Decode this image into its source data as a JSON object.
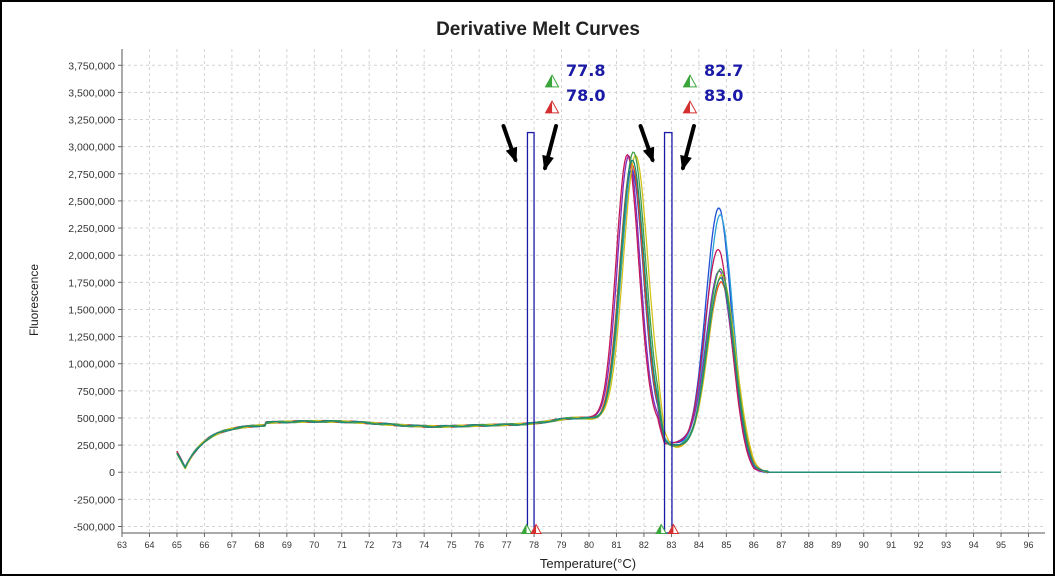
{
  "chart_data": {
    "type": "line",
    "title": "Derivative Melt Curves",
    "xlabel": "Temperature(°C)",
    "ylabel": "Fluorescence",
    "xlim": [
      63,
      96.6
    ],
    "ylim": [
      -560000,
      3900000
    ],
    "x_ticks": [
      63,
      64,
      65,
      66,
      67,
      68,
      69,
      70,
      71,
      72,
      73,
      74,
      75,
      76,
      77,
      78,
      79,
      80,
      81,
      82,
      83,
      84,
      85,
      86,
      87,
      88,
      89,
      90,
      91,
      92,
      93,
      94,
      95,
      96
    ],
    "x_tick_labels": [
      "63",
      "64",
      "65",
      "66",
      "67",
      "68",
      "69",
      "70",
      "71",
      "72",
      "73",
      "74",
      "75",
      "76",
      "77",
      "78",
      "79",
      "80",
      "81",
      "82",
      "83",
      "84",
      "85",
      "86",
      "87",
      "88",
      "89",
      "90",
      "91",
      "92",
      "93",
      "94",
      "95",
      "96"
    ],
    "y_ticks": [
      -500000,
      -250000,
      0,
      250000,
      500000,
      750000,
      1000000,
      1250000,
      1500000,
      1750000,
      2000000,
      2250000,
      2500000,
      2750000,
      3000000,
      3250000,
      3500000,
      3750000
    ],
    "y_tick_labels": [
      "-500,000",
      "-250,000",
      "0",
      "250,000",
      "500,000",
      "750,000",
      "1,000,000",
      "1,250,000",
      "1,500,000",
      "1,750,000",
      "2,000,000",
      "2,250,000",
      "2,500,000",
      "2,750,000",
      "3,000,000",
      "3,250,000",
      "3,500,000",
      "3,750,000"
    ],
    "grid": true,
    "series": [
      {
        "color": "#1f4fd6",
        "params": {
          "b0": 190000,
          "pA": 2350000,
          "mA": 81.55,
          "sA": 0.42,
          "pB": 2180000,
          "mB": 84.72,
          "sB": 0.46,
          "dip": 1.0
        }
      },
      {
        "color": "#2a9fd6",
        "params": {
          "b0": 175000,
          "pA": 2330000,
          "mA": 81.6,
          "sA": 0.43,
          "pB": 2120000,
          "mB": 84.78,
          "sB": 0.47,
          "dip": 0.95
        }
      },
      {
        "color": "#7b2fbe",
        "params": {
          "b0": 185000,
          "pA": 2460000,
          "mA": 81.45,
          "sA": 0.41,
          "pB": 1580000,
          "mB": 84.75,
          "sB": 0.48,
          "dip": 1.05
        }
      },
      {
        "color": "#c2185b",
        "params": {
          "b0": 200000,
          "pA": 2480000,
          "mA": 81.4,
          "sA": 0.41,
          "pB": 1800000,
          "mB": 84.7,
          "sB": 0.47,
          "dip": 1.0
        }
      },
      {
        "color": "#e64a19",
        "params": {
          "b0": 180000,
          "pA": 2400000,
          "mA": 81.55,
          "sA": 0.43,
          "pB": 1520000,
          "mB": 84.82,
          "sB": 0.5,
          "dip": 0.9
        }
      },
      {
        "color": "#d4c21a",
        "params": {
          "b0": 170000,
          "pA": 2470000,
          "mA": 81.7,
          "sA": 0.45,
          "pB": 1600000,
          "mB": 84.85,
          "sB": 0.5,
          "dip": 0.85
        }
      },
      {
        "color": "#43a047",
        "params": {
          "b0": 178000,
          "pA": 2510000,
          "mA": 81.62,
          "sA": 0.44,
          "pB": 1650000,
          "mB": 84.8,
          "sB": 0.49,
          "dip": 0.88
        }
      },
      {
        "color": "#1b8a7a",
        "params": {
          "b0": 182000,
          "pA": 2440000,
          "mA": 81.58,
          "sA": 0.43,
          "pB": 1560000,
          "mB": 84.8,
          "sB": 0.48,
          "dip": 0.92
        }
      }
    ],
    "peak_markers": [
      {
        "value": 77.8,
        "label": "77.8",
        "color": "#3aa53a"
      },
      {
        "value": 78.0,
        "label": "78.0",
        "color": "#d32f2f"
      },
      {
        "value": 82.7,
        "label": "82.7",
        "color": "#3aa53a"
      },
      {
        "value": 83.0,
        "label": "83.0",
        "color": "#d32f2f"
      }
    ],
    "highlight_bands": [
      {
        "x_start": 77.76,
        "x_end": 78.0,
        "y_top": 3130000
      },
      {
        "x_start": 82.75,
        "x_end": 83.02,
        "y_top": 3130000
      }
    ],
    "colors": {
      "band": "#1a1aa6",
      "grid": "#d3d3d3",
      "arrow": "#000000"
    }
  }
}
